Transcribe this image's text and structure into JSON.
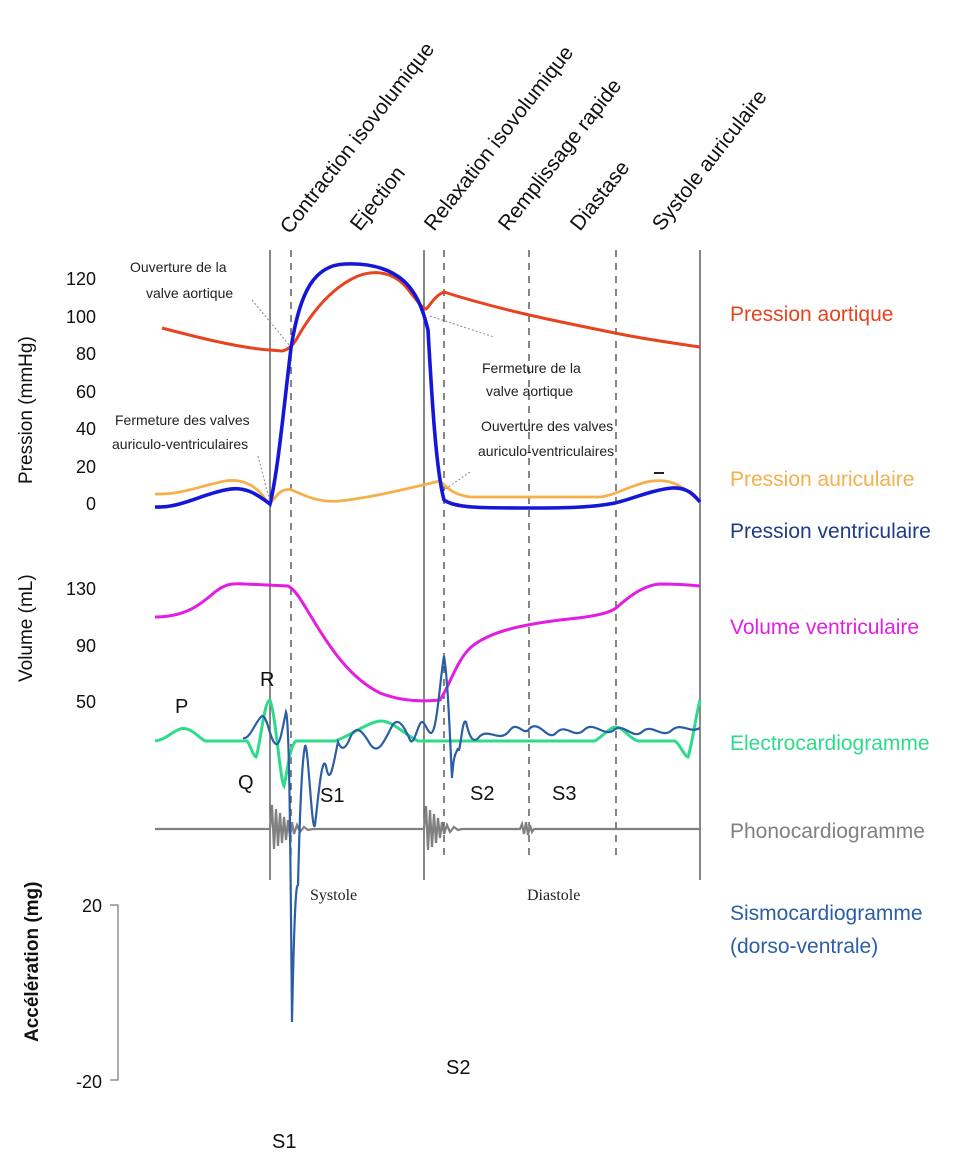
{
  "phases": [
    "Contraction isovolumique",
    "Ejection",
    "Relaxation isovolumique",
    "Remplissage rapide",
    "Diastase",
    "Systole auriculaire"
  ],
  "pressure_axis": {
    "label": "Pression (mmHg)",
    "ticks": [
      "120",
      "100",
      "80",
      "60",
      "40",
      "20",
      "0"
    ]
  },
  "volume_axis": {
    "label": "Volume (mL)",
    "ticks": [
      "130",
      "90",
      "50"
    ]
  },
  "accel_axis": {
    "label": "Accélération (mg)",
    "ticks": [
      "20",
      "-20"
    ]
  },
  "annotations": {
    "aortic_open": [
      "Ouverture de la",
      "valve aortique"
    ],
    "aortic_close": [
      "Fermeture de la",
      "valve aortique"
    ],
    "av_close": [
      "Fermeture des valves",
      "auriculo-ventriculaires"
    ],
    "av_open": [
      "Ouverture des valves",
      "auriculo-ventriculaires"
    ]
  },
  "legend": {
    "aortic": "Pression aortique",
    "atrial": "Pression auriculaire",
    "ventricular": "Pression ventriculaire",
    "volume": "Volume ventriculaire",
    "ecg": "Electrocardiogramme",
    "pcg": "Phonocardiogramme",
    "scg_line1": "Sismocardiogramme",
    "scg_line2": "(dorso-ventrale)"
  },
  "waves": {
    "p": "P",
    "q": "Q",
    "r": "R"
  },
  "sounds": {
    "s1": "S1",
    "s2": "S2",
    "s3": "S3",
    "scg_s1": "S1",
    "scg_s2": "S2"
  },
  "periods": {
    "systole": "Systole",
    "diastole": "Diastole"
  },
  "colors": {
    "aortic": "#e8431f",
    "atrial": "#f5b04c",
    "ventricular": "#1416d8",
    "ventricular_label": "#1f3c88",
    "volume": "#e21fe0",
    "ecg": "#2ddc8a",
    "pcg": "#808080",
    "scg": "#2b5ea4"
  }
}
